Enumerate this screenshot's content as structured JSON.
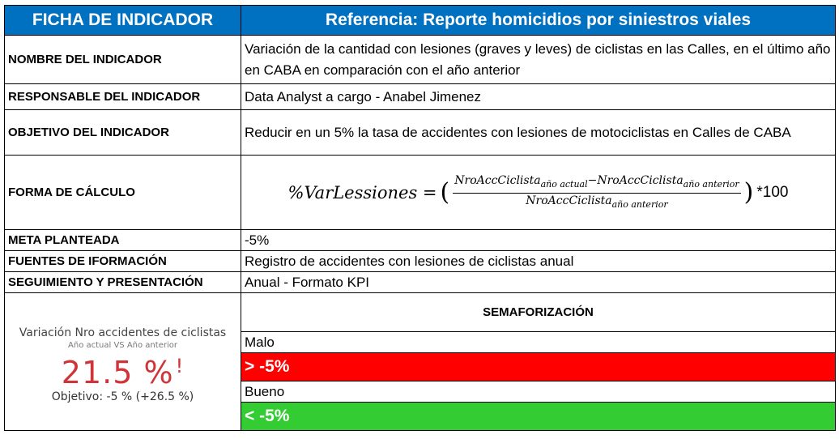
{
  "header": {
    "left": "FICHA DE INDICADOR",
    "right": "Referencia: Reporte homicidios por siniestros viales"
  },
  "rows": {
    "nombre": {
      "label": "NOMBRE DEL INDICADOR",
      "value": "Variación de la cantidad con lesiones (graves y leves) de ciclistas en las Calles, en el último año en CABA en comparación con el año anterior"
    },
    "responsable": {
      "label": "RESPONSABLE DEL INDICADOR",
      "value": "Data Analyst a cargo - Anabel Jimenez"
    },
    "objetivo": {
      "label": "OBJETIVO DEL INDICADOR",
      "value": "Reducir en un 5% la tasa de accidentes con lesiones de motociclistas en Calles de CABA"
    },
    "calculo": {
      "label": "FORMA DE CÁLCULO",
      "lhs": "%VarLessiones = ",
      "num_a": "NroAccCiclista",
      "sub_a": "año actual",
      "minus": "−",
      "num_b": "NroAccCiclista",
      "sub_b": "año anterior",
      "den": "NroAccCiclista",
      "sub_den": "año anterior",
      "tail": "*100"
    },
    "meta": {
      "label": "META PLANTEADA",
      "value": "-5%"
    },
    "fuentes": {
      "label": "FUENTES DE IFORMACIÓN",
      "value": "Registro de accidentes con lesiones de ciclistas anual"
    },
    "seguimiento": {
      "label": "SEGUIMIENTO Y PRESENTACIÓN",
      "value": "Anual - Formato KPI"
    }
  },
  "kpi": {
    "title": "Variación Nro accidentes de ciclistas",
    "subtitle": "Año actual VS Año anterior",
    "value": "21.5 %",
    "alert": "!",
    "goal": "Objetivo: -5 % (+26.5 %)",
    "color": "#d13438"
  },
  "semaforo": {
    "title": "SEMAFORIZACIÓN",
    "malo_label": "Malo",
    "malo_rule": "> -5%",
    "malo_color": "#ff0000",
    "bueno_label": "Bueno",
    "bueno_rule": "< -5%",
    "bueno_color": "#33cc33"
  }
}
